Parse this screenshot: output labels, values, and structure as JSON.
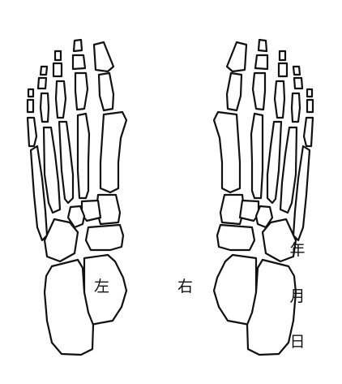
{
  "labels": {
    "left_foot": "左",
    "right_foot": "右"
  },
  "date_fields": {
    "year": "年",
    "month": "月",
    "day": "日"
  },
  "colors": {
    "stroke": "#111111",
    "background": "#ffffff"
  }
}
